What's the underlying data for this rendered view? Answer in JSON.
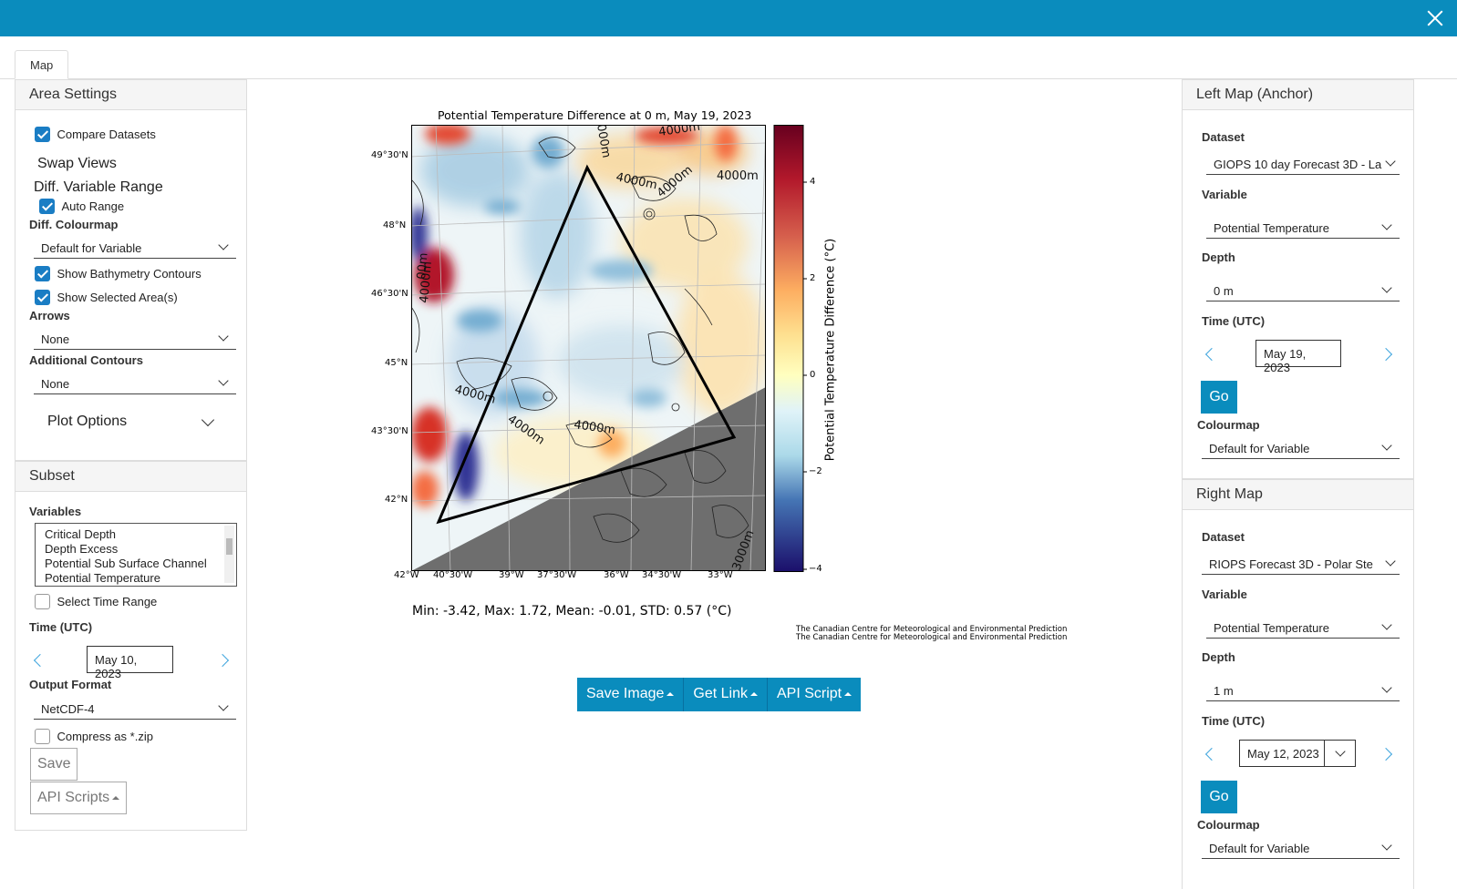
{
  "tabs": [
    "Map"
  ],
  "area_settings": {
    "title": "Area Settings",
    "compare_datasets": "Compare Datasets",
    "swap_views": "Swap Views",
    "diff_variable_range": "Diff. Variable Range",
    "auto_range": "Auto Range",
    "diff_colourmap_label": "Diff. Colourmap",
    "diff_colourmap_value": "Default for Variable",
    "show_bathymetry": "Show Bathymetry Contours",
    "show_selected_areas": "Show Selected Area(s)",
    "arrows_label": "Arrows",
    "arrows_value": "None",
    "additional_contours_label": "Additional Contours",
    "additional_contours_value": "None",
    "plot_options": "Plot Options"
  },
  "subset": {
    "title": "Subset",
    "variables_label": "Variables",
    "variables": [
      "Critical Depth",
      "Depth Excess",
      "Potential Sub Surface Channel",
      "Potential Temperature"
    ],
    "select_time_range": "Select Time Range",
    "time_label": "Time (UTC)",
    "time_value": "May 10, 2023",
    "output_format_label": "Output Format",
    "output_format_value": "NetCDF-4",
    "compress": "Compress as *.zip",
    "save": "Save",
    "api_scripts": "API Scripts"
  },
  "left_map": {
    "title": "Left Map (Anchor)",
    "dataset_label": "Dataset",
    "dataset_value": "GIOPS 10 day Forecast 3D - La",
    "variable_label": "Variable",
    "variable_value": "Potential Temperature",
    "depth_label": "Depth",
    "depth_value": "0 m",
    "time_label": "Time (UTC)",
    "time_value": "May 19, 2023",
    "go": "Go",
    "colourmap_label": "Colourmap",
    "colourmap_value": "Default for Variable"
  },
  "right_map": {
    "title": "Right Map",
    "dataset_label": "Dataset",
    "dataset_value": "RIOPS Forecast 3D - Polar Ste",
    "variable_label": "Variable",
    "variable_value": "Potential Temperature",
    "depth_label": "Depth",
    "depth_value": "1 m",
    "time_label": "Time (UTC)",
    "time_value": "May 12, 2023",
    "go": "Go",
    "colourmap_label": "Colourmap",
    "colourmap_value": "Default for Variable"
  },
  "plot": {
    "title": "Potential Temperature Difference  at 0 m, May 19, 2023",
    "lat_ticks": [
      "49°30'N",
      "48°N",
      "46°30'N",
      "45°N",
      "43°30'N",
      "42°N"
    ],
    "lon_ticks": [
      "42°W",
      "40°30'W",
      "39°W",
      "37°30'W",
      "36°W",
      "34°30'W",
      "33°W"
    ],
    "colorbar_label": "Potential Temperature Difference (°C)",
    "colorbar_ticks": [
      "4",
      "2",
      "0",
      "−2",
      "−4"
    ],
    "contour_labels": [
      "4000m",
      "4000m",
      "4000m",
      "4000m",
      "4000m",
      "4000m",
      "4000m",
      "4000m",
      "000m",
      "00m",
      "3000m"
    ],
    "stats": "Min: -3.42, Max: 1.72, Mean: -0.01, STD: 0.57 (°C)",
    "credit_1": "The Canadian Centre for Meteorological and Environmental Prediction",
    "credit_2": "The Canadian Centre for Meteorological and Environmental Prediction"
  },
  "actions": {
    "save_image": "Save Image",
    "get_link": "Get Link",
    "api_script": "API Script"
  },
  "colors": {
    "accent": "#0a8cbd",
    "checkbox": "#1a7dc4",
    "land": "#6e6e6e"
  }
}
